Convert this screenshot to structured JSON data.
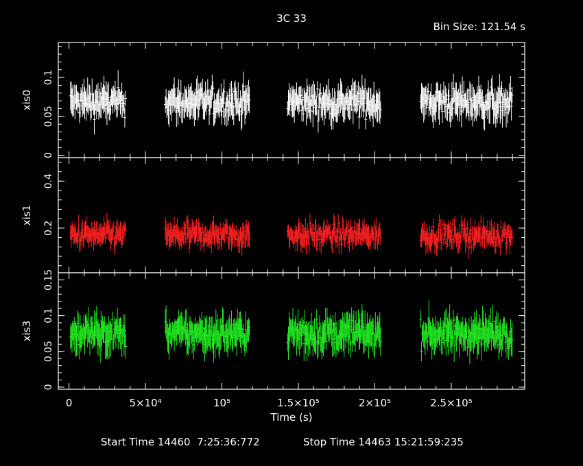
{
  "header": {
    "title": "3C 33",
    "bin_size": "Bin Size: 121.54 s"
  },
  "footer": {
    "start_time": "Start Time 14460  7:25:36:772",
    "stop_time": "Stop Time 14463 15:21:59:235"
  },
  "colors": {
    "xis0": "#ffffff",
    "xis1": "#ff2020",
    "xis3": "#22ee22"
  },
  "chart_data": {
    "type": "scatter",
    "title": "3C 33",
    "xlabel": "Time (s)",
    "xlim": [
      -7000,
      298000
    ],
    "x_ticks": [
      {
        "value": 0,
        "label": "0"
      },
      {
        "value": 50000,
        "label": "5×10⁴"
      },
      {
        "value": 100000,
        "label": "10⁵"
      },
      {
        "value": 150000,
        "label": "1.5×10⁵"
      },
      {
        "value": 200000,
        "label": "2×10⁵"
      },
      {
        "value": 250000,
        "label": "2.5×10⁵"
      }
    ],
    "segments": [
      [
        1000,
        37000
      ],
      [
        63000,
        118000
      ],
      [
        143000,
        204000
      ],
      [
        230000,
        290000
      ]
    ],
    "bin_width_s": 121.54,
    "panels": [
      {
        "name": "xis0",
        "ylabel": "xis0",
        "ylim": [
          -0.003,
          0.145
        ],
        "y_ticks": [
          {
            "value": 0,
            "label": "0"
          },
          {
            "value": 0.05,
            "label": "0.05"
          },
          {
            "value": 0.1,
            "label": "0.1"
          }
        ],
        "mean": 0.068,
        "spread": 0.012,
        "err": 0.015,
        "color_key": "xis0"
      },
      {
        "name": "xis1",
        "ylabel": "xis1",
        "ylim": [
          0.01,
          0.5
        ],
        "y_ticks": [
          {
            "value": 0.2,
            "label": "0.2"
          },
          {
            "value": 0.4,
            "label": "0.4"
          }
        ],
        "mean": 0.17,
        "spread": 0.03,
        "err": 0.035,
        "color_key": "xis1"
      },
      {
        "name": "xis3",
        "ylabel": "xis3",
        "ylim": [
          -0.003,
          0.16
        ],
        "y_ticks": [
          {
            "value": 0,
            "label": "0"
          },
          {
            "value": 0.05,
            "label": "0.05"
          },
          {
            "value": 0.1,
            "label": "0.1"
          },
          {
            "value": 0.15,
            "label": "0.15"
          }
        ],
        "mean": 0.075,
        "spread": 0.013,
        "err": 0.017,
        "color_key": "xis3"
      }
    ]
  }
}
